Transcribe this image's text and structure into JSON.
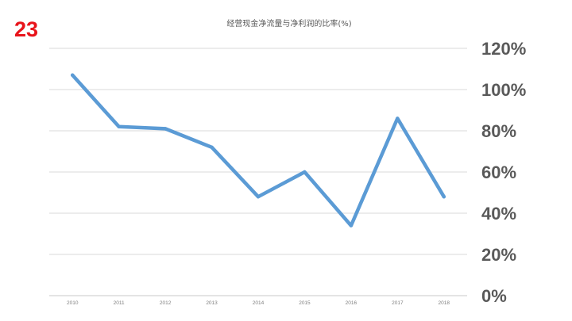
{
  "slide": {
    "number": "23"
  },
  "chart_data": {
    "type": "line",
    "title": "经营现金净流量与净利润的比率(%)",
    "xlabel": "",
    "ylabel": "",
    "categories": [
      "2010",
      "2011",
      "2012",
      "2013",
      "2014",
      "2015",
      "2016",
      "2017",
      "2018"
    ],
    "series": [
      {
        "values": [
          107,
          82,
          81,
          72,
          48,
          60,
          34,
          86,
          48
        ]
      }
    ],
    "ylim": [
      0,
      120
    ],
    "yticks": [
      0,
      20,
      40,
      60,
      80,
      100,
      120
    ],
    "ytick_labels": [
      "0%",
      "20%",
      "40%",
      "60%",
      "80%",
      "100%",
      "120%"
    ],
    "y_axis_position": "right",
    "grid": true,
    "legend": "none",
    "colors": {
      "line": "#5b9bd5",
      "slide_number": "#e8141b"
    }
  }
}
